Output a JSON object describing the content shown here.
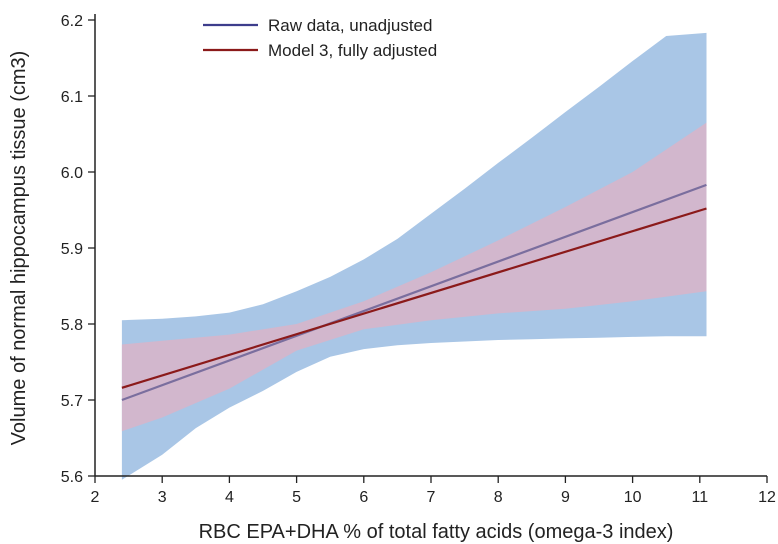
{
  "chart_data": {
    "type": "line",
    "xlabel": "RBC EPA+DHA % of total fatty acids (omega-3 index)",
    "ylabel": "Volume of normal hippocampus tissue (cm3)",
    "xlim": [
      2,
      12
    ],
    "ylim": [
      5.6,
      6.2
    ],
    "xticks": [
      "2",
      "3",
      "4",
      "5",
      "6",
      "7",
      "8",
      "9",
      "10",
      "11",
      "12"
    ],
    "yticks": [
      "5.6",
      "5.7",
      "5.8",
      "5.9",
      "6.0",
      "6.1",
      "6.2"
    ],
    "grid": false,
    "legend_position": "top-left",
    "series": [
      {
        "name": "Raw data, unadjusted",
        "color": "#3d3d8c",
        "band_color": "#a9c6e6",
        "x": [
          2.4,
          11.1
        ],
        "y": [
          5.7,
          5.983
        ],
        "ci_x": [
          2.4,
          3.0,
          3.5,
          4.0,
          4.5,
          5.0,
          5.5,
          6.0,
          6.5,
          7.0,
          7.5,
          8.0,
          8.5,
          9.0,
          9.5,
          10.0,
          10.5,
          11.1
        ],
        "ci_upper": [
          5.805,
          5.807,
          5.81,
          5.815,
          5.826,
          5.843,
          5.862,
          5.885,
          5.912,
          5.945,
          5.978,
          6.012,
          6.045,
          6.079,
          6.112,
          6.146,
          6.179,
          6.183
        ],
        "ci_lower": [
          5.595,
          5.628,
          5.663,
          5.69,
          5.712,
          5.737,
          5.757,
          5.767,
          5.772,
          5.775,
          5.777,
          5.779,
          5.78,
          5.781,
          5.782,
          5.783,
          5.784,
          5.784
        ]
      },
      {
        "name": "Model 3, fully adjusted",
        "color": "#8b1a1a",
        "band_color": "#d9b4c8",
        "x": [
          2.4,
          11.1
        ],
        "y": [
          5.716,
          5.952
        ],
        "ci_x": [
          2.4,
          3.0,
          4.0,
          5.0,
          6.0,
          7.0,
          8.0,
          9.0,
          10.0,
          11.1
        ],
        "ci_upper": [
          5.773,
          5.778,
          5.786,
          5.8,
          5.83,
          5.868,
          5.91,
          5.954,
          6.0,
          6.065
        ],
        "ci_lower": [
          5.659,
          5.677,
          5.715,
          5.765,
          5.793,
          5.805,
          5.814,
          5.82,
          5.83,
          5.843
        ]
      }
    ]
  }
}
